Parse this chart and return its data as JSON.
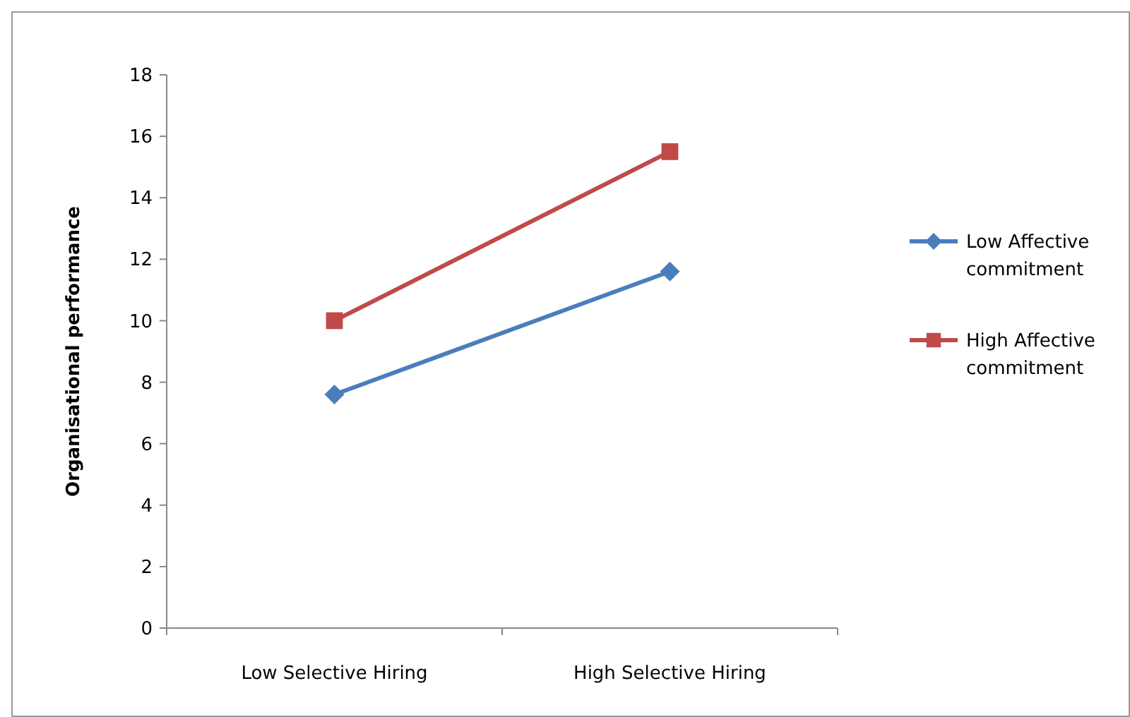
{
  "chart_data": {
    "type": "line",
    "ylabel": "Organisational performance",
    "categories": [
      "Low Selective Hiring",
      "High Selective Hiring"
    ],
    "series": [
      {
        "name": "Low Affective commitment",
        "color": "#4a7ebb",
        "values": [
          7.6,
          11.6
        ],
        "marker": "diamond"
      },
      {
        "name": "High Affective commitment",
        "color": "#be4b48",
        "values": [
          10,
          15.5
        ],
        "marker": "square"
      }
    ],
    "ylim": [
      0,
      18
    ],
    "yticks": [
      0,
      2,
      4,
      6,
      8,
      10,
      12,
      14,
      16,
      18
    ],
    "grid": false,
    "legend": "right",
    "line_style": "solid"
  }
}
